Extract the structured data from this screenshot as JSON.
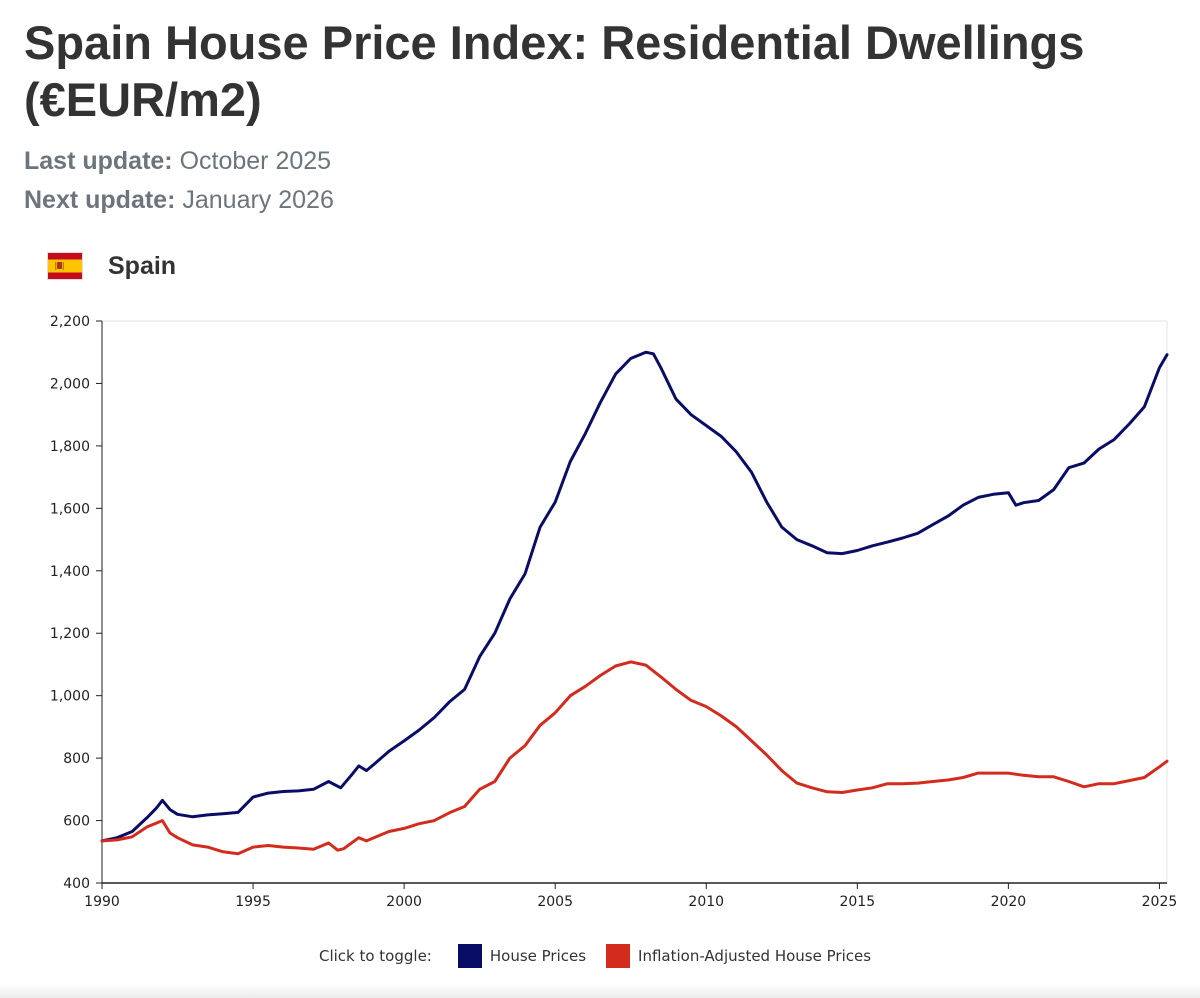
{
  "page": {
    "title": "Spain House Price Index: Residential Dwellings (€EUR/m2)",
    "last_update_label": "Last update:",
    "last_update_value": "October 2025",
    "next_update_label": "Next update:",
    "next_update_value": "January 2026",
    "country": "Spain",
    "country_flag_icon": "spain-flag-icon"
  },
  "legend": {
    "caption": "Click to toggle:",
    "items": [
      {
        "label": "House Prices",
        "color": "#0a0d66"
      },
      {
        "label": "Inflation-Adjusted House Prices",
        "color": "#d32b1e"
      }
    ]
  },
  "chart_data": {
    "type": "line",
    "title": "",
    "xlabel": "",
    "ylabel": "",
    "xlim": [
      1990,
      2025.25
    ],
    "ylim": [
      400,
      2200
    ],
    "x_ticks": [
      1990,
      1995,
      2000,
      2005,
      2010,
      2015,
      2020,
      2025
    ],
    "x_tick_labels": [
      "1990",
      "1995",
      "2000",
      "2005",
      "2010",
      "2015",
      "2020",
      "2025"
    ],
    "y_ticks": [
      400,
      600,
      800,
      1000,
      1200,
      1400,
      1600,
      1800,
      2000,
      2200
    ],
    "y_tick_labels": [
      "400",
      "600",
      "800",
      "1,000",
      "1,200",
      "1,400",
      "1,600",
      "1,800",
      "2,000",
      "2,200"
    ],
    "grid": false,
    "legend_position": "bottom-center",
    "series": [
      {
        "name": "House Prices",
        "color": "#0a0d66",
        "points": [
          [
            1990,
            535
          ],
          [
            1990.5,
            545
          ],
          [
            1991,
            565
          ],
          [
            1991.5,
            610
          ],
          [
            1991.8,
            640
          ],
          [
            1992,
            665
          ],
          [
            1992.25,
            635
          ],
          [
            1992.5,
            620
          ],
          [
            1993,
            612
          ],
          [
            1993.5,
            618
          ],
          [
            1994,
            622
          ],
          [
            1994.5,
            626
          ],
          [
            1995,
            675
          ],
          [
            1995.5,
            688
          ],
          [
            1996,
            693
          ],
          [
            1996.5,
            695
          ],
          [
            1997,
            700
          ],
          [
            1997.5,
            725
          ],
          [
            1997.9,
            705
          ],
          [
            1998.25,
            745
          ],
          [
            1998.5,
            775
          ],
          [
            1998.75,
            760
          ],
          [
            1999,
            780
          ],
          [
            1999.5,
            822
          ],
          [
            2000,
            855
          ],
          [
            2000.5,
            890
          ],
          [
            2001,
            930
          ],
          [
            2001.5,
            980
          ],
          [
            2002,
            1020
          ],
          [
            2002.5,
            1125
          ],
          [
            2003,
            1200
          ],
          [
            2003.5,
            1310
          ],
          [
            2004,
            1390
          ],
          [
            2004.5,
            1540
          ],
          [
            2005,
            1620
          ],
          [
            2005.5,
            1750
          ],
          [
            2006,
            1840
          ],
          [
            2006.5,
            1940
          ],
          [
            2007,
            2030
          ],
          [
            2007.5,
            2080
          ],
          [
            2008,
            2100
          ],
          [
            2008.25,
            2095
          ],
          [
            2008.5,
            2050
          ],
          [
            2009,
            1950
          ],
          [
            2009.5,
            1900
          ],
          [
            2010,
            1865
          ],
          [
            2010.5,
            1830
          ],
          [
            2011,
            1780
          ],
          [
            2011.5,
            1715
          ],
          [
            2012,
            1620
          ],
          [
            2012.5,
            1540
          ],
          [
            2013,
            1500
          ],
          [
            2013.5,
            1480
          ],
          [
            2014,
            1458
          ],
          [
            2014.5,
            1455
          ],
          [
            2015,
            1465
          ],
          [
            2015.5,
            1480
          ],
          [
            2016,
            1492
          ],
          [
            2016.5,
            1505
          ],
          [
            2017,
            1520
          ],
          [
            2017.5,
            1548
          ],
          [
            2018,
            1575
          ],
          [
            2018.5,
            1610
          ],
          [
            2019,
            1635
          ],
          [
            2019.5,
            1645
          ],
          [
            2020,
            1650
          ],
          [
            2020.25,
            1610
          ],
          [
            2020.5,
            1618
          ],
          [
            2021,
            1625
          ],
          [
            2021.5,
            1660
          ],
          [
            2022,
            1730
          ],
          [
            2022.5,
            1745
          ],
          [
            2023,
            1790
          ],
          [
            2023.5,
            1820
          ],
          [
            2024,
            1870
          ],
          [
            2024.5,
            1925
          ],
          [
            2025,
            2050
          ],
          [
            2025.25,
            2092
          ]
        ]
      },
      {
        "name": "Inflation-Adjusted House Prices",
        "color": "#d32b1e",
        "points": [
          [
            1990,
            535
          ],
          [
            1990.5,
            538
          ],
          [
            1991,
            548
          ],
          [
            1991.5,
            580
          ],
          [
            1992,
            600
          ],
          [
            1992.25,
            560
          ],
          [
            1992.5,
            545
          ],
          [
            1993,
            522
          ],
          [
            1993.5,
            515
          ],
          [
            1994,
            500
          ],
          [
            1994.5,
            494
          ],
          [
            1995,
            515
          ],
          [
            1995.5,
            520
          ],
          [
            1996,
            515
          ],
          [
            1996.5,
            512
          ],
          [
            1997,
            508
          ],
          [
            1997.5,
            528
          ],
          [
            1997.8,
            505
          ],
          [
            1998,
            510
          ],
          [
            1998.5,
            545
          ],
          [
            1998.75,
            535
          ],
          [
            1999,
            545
          ],
          [
            1999.5,
            565
          ],
          [
            2000,
            575
          ],
          [
            2000.5,
            590
          ],
          [
            2001,
            600
          ],
          [
            2001.5,
            625
          ],
          [
            2002,
            645
          ],
          [
            2002.5,
            700
          ],
          [
            2003,
            725
          ],
          [
            2003.5,
            800
          ],
          [
            2004,
            840
          ],
          [
            2004.5,
            905
          ],
          [
            2005,
            945
          ],
          [
            2005.5,
            1000
          ],
          [
            2006,
            1030
          ],
          [
            2006.5,
            1065
          ],
          [
            2007,
            1095
          ],
          [
            2007.5,
            1108
          ],
          [
            2008,
            1098
          ],
          [
            2008.5,
            1060
          ],
          [
            2009,
            1020
          ],
          [
            2009.5,
            985
          ],
          [
            2010,
            965
          ],
          [
            2010.5,
            935
          ],
          [
            2011,
            900
          ],
          [
            2011.5,
            855
          ],
          [
            2012,
            810
          ],
          [
            2012.5,
            760
          ],
          [
            2013,
            720
          ],
          [
            2013.5,
            705
          ],
          [
            2014,
            692
          ],
          [
            2014.5,
            690
          ],
          [
            2015,
            698
          ],
          [
            2015.5,
            705
          ],
          [
            2016,
            718
          ],
          [
            2016.5,
            718
          ],
          [
            2017,
            720
          ],
          [
            2017.5,
            725
          ],
          [
            2018,
            730
          ],
          [
            2018.5,
            738
          ],
          [
            2019,
            752
          ],
          [
            2019.5,
            752
          ],
          [
            2020,
            752
          ],
          [
            2020.5,
            745
          ],
          [
            2021,
            740
          ],
          [
            2021.5,
            740
          ],
          [
            2022,
            725
          ],
          [
            2022.5,
            708
          ],
          [
            2023,
            718
          ],
          [
            2023.5,
            718
          ],
          [
            2024,
            728
          ],
          [
            2024.5,
            738
          ],
          [
            2025,
            772
          ],
          [
            2025.25,
            790
          ]
        ]
      }
    ]
  }
}
